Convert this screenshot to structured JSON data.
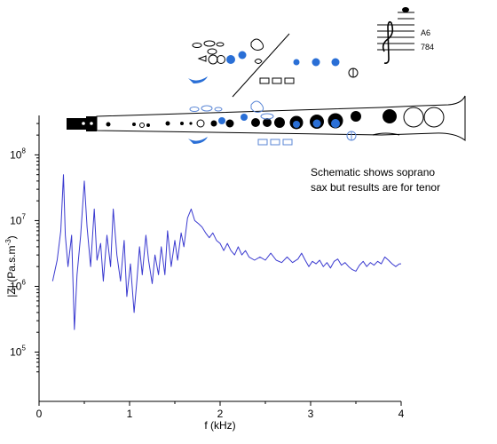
{
  "chart_data": {
    "type": "line",
    "xlabel": "f (kHz)",
    "ylabel_parts": [
      "|Z| (Pa.s.m",
      "-3",
      ")"
    ],
    "xlim": [
      0,
      4
    ],
    "ylim_log10": [
      4.25,
      8.6
    ],
    "y_scale": "log",
    "x_ticks": [
      {
        "value": 0,
        "label": "0"
      },
      {
        "value": 1,
        "label": "1"
      },
      {
        "value": 2,
        "label": "2"
      },
      {
        "value": 3,
        "label": "3"
      },
      {
        "value": 4,
        "label": "4"
      }
    ],
    "y_ticks": [
      {
        "value": 100000,
        "base": "10",
        "exp": "5"
      },
      {
        "value": 1000000,
        "base": "10",
        "exp": "6"
      },
      {
        "value": 10000000,
        "base": "10",
        "exp": "7"
      },
      {
        "value": 100000000,
        "base": "10",
        "exp": "8"
      }
    ],
    "grid": false,
    "series": [
      {
        "color": "#3a3ad0",
        "points": [
          [
            0.15,
            1200000.0
          ],
          [
            0.2,
            2500000.0
          ],
          [
            0.24,
            7000000.0
          ],
          [
            0.27,
            50000000.0
          ],
          [
            0.29,
            6000000.0
          ],
          [
            0.32,
            2000000.0
          ],
          [
            0.36,
            6000000.0
          ],
          [
            0.39,
            220000.0
          ],
          [
            0.42,
            1500000.0
          ],
          [
            0.46,
            6000000.0
          ],
          [
            0.5,
            40000000.0
          ],
          [
            0.53,
            8000000.0
          ],
          [
            0.57,
            2000000.0
          ],
          [
            0.61,
            15000000.0
          ],
          [
            0.64,
            2500000.0
          ],
          [
            0.68,
            4500000.0
          ],
          [
            0.71,
            1200000.0
          ],
          [
            0.75,
            6000000.0
          ],
          [
            0.79,
            2000000.0
          ],
          [
            0.82,
            15000000.0
          ],
          [
            0.86,
            3000000.0
          ],
          [
            0.9,
            1200000.0
          ],
          [
            0.94,
            5000000.0
          ],
          [
            0.97,
            700000.0
          ],
          [
            1.01,
            2200000.0
          ],
          [
            1.05,
            400000.0
          ],
          [
            1.08,
            1200000.0
          ],
          [
            1.11,
            4000000.0
          ],
          [
            1.14,
            1500000.0
          ],
          [
            1.18,
            6000000.0
          ],
          [
            1.21,
            2500000.0
          ],
          [
            1.25,
            1100000.0
          ],
          [
            1.28,
            3000000.0
          ],
          [
            1.32,
            1500000.0
          ],
          [
            1.35,
            4000000.0
          ],
          [
            1.39,
            1500000.0
          ],
          [
            1.42,
            7000000.0
          ],
          [
            1.46,
            2000000.0
          ],
          [
            1.5,
            5000000.0
          ],
          [
            1.53,
            2500000.0
          ],
          [
            1.57,
            6500000.0
          ],
          [
            1.6,
            4000000.0
          ],
          [
            1.64,
            11000000.0
          ],
          [
            1.68,
            15000000.0
          ],
          [
            1.72,
            10000000.0
          ],
          [
            1.76,
            9000000.0
          ],
          [
            1.8,
            8000000.0
          ],
          [
            1.84,
            6500000.0
          ],
          [
            1.88,
            5500000.0
          ],
          [
            1.92,
            6500000.0
          ],
          [
            1.96,
            5000000.0
          ],
          [
            2.0,
            4500000.0
          ],
          [
            2.04,
            3500000.0
          ],
          [
            2.08,
            4500000.0
          ],
          [
            2.12,
            3500000.0
          ],
          [
            2.16,
            3000000.0
          ],
          [
            2.2,
            4000000.0
          ],
          [
            2.24,
            3000000.0
          ],
          [
            2.28,
            3500000.0
          ],
          [
            2.32,
            2800000.0
          ],
          [
            2.38,
            2500000.0
          ],
          [
            2.44,
            2800000.0
          ],
          [
            2.5,
            2500000.0
          ],
          [
            2.56,
            3200000.0
          ],
          [
            2.62,
            2500000.0
          ],
          [
            2.68,
            2300000.0
          ],
          [
            2.74,
            2800000.0
          ],
          [
            2.8,
            2300000.0
          ],
          [
            2.86,
            2600000.0
          ],
          [
            2.9,
            3200000.0
          ],
          [
            2.94,
            2500000.0
          ],
          [
            2.98,
            2000000.0
          ],
          [
            3.02,
            2400000.0
          ],
          [
            3.06,
            2200000.0
          ],
          [
            3.1,
            2500000.0
          ],
          [
            3.14,
            2000000.0
          ],
          [
            3.18,
            2300000.0
          ],
          [
            3.22,
            1900000.0
          ],
          [
            3.26,
            2400000.0
          ],
          [
            3.3,
            2600000.0
          ],
          [
            3.34,
            2100000.0
          ],
          [
            3.38,
            2300000.0
          ],
          [
            3.42,
            2000000.0
          ],
          [
            3.46,
            1800000.0
          ],
          [
            3.5,
            1700000.0
          ],
          [
            3.54,
            2100000.0
          ],
          [
            3.58,
            2400000.0
          ],
          [
            3.62,
            2000000.0
          ],
          [
            3.66,
            2300000.0
          ],
          [
            3.7,
            2100000.0
          ],
          [
            3.74,
            2400000.0
          ],
          [
            3.78,
            2200000.0
          ],
          [
            3.82,
            2800000.0
          ],
          [
            3.86,
            2500000.0
          ],
          [
            3.9,
            2200000.0
          ],
          [
            3.94,
            2000000.0
          ],
          [
            3.98,
            2200000.0
          ],
          [
            4.0,
            2200000.0
          ]
        ]
      }
    ],
    "annotations": [
      "Schematic shows soprano",
      "sax but results are for tenor"
    ]
  },
  "note_panel": {
    "note_name": "A6",
    "frequency": "784"
  },
  "colors": {
    "line": "#3a3ad0",
    "key_blue": "#2a6fd6",
    "key_outline_blue": "#5a86d6",
    "black": "#000000"
  }
}
